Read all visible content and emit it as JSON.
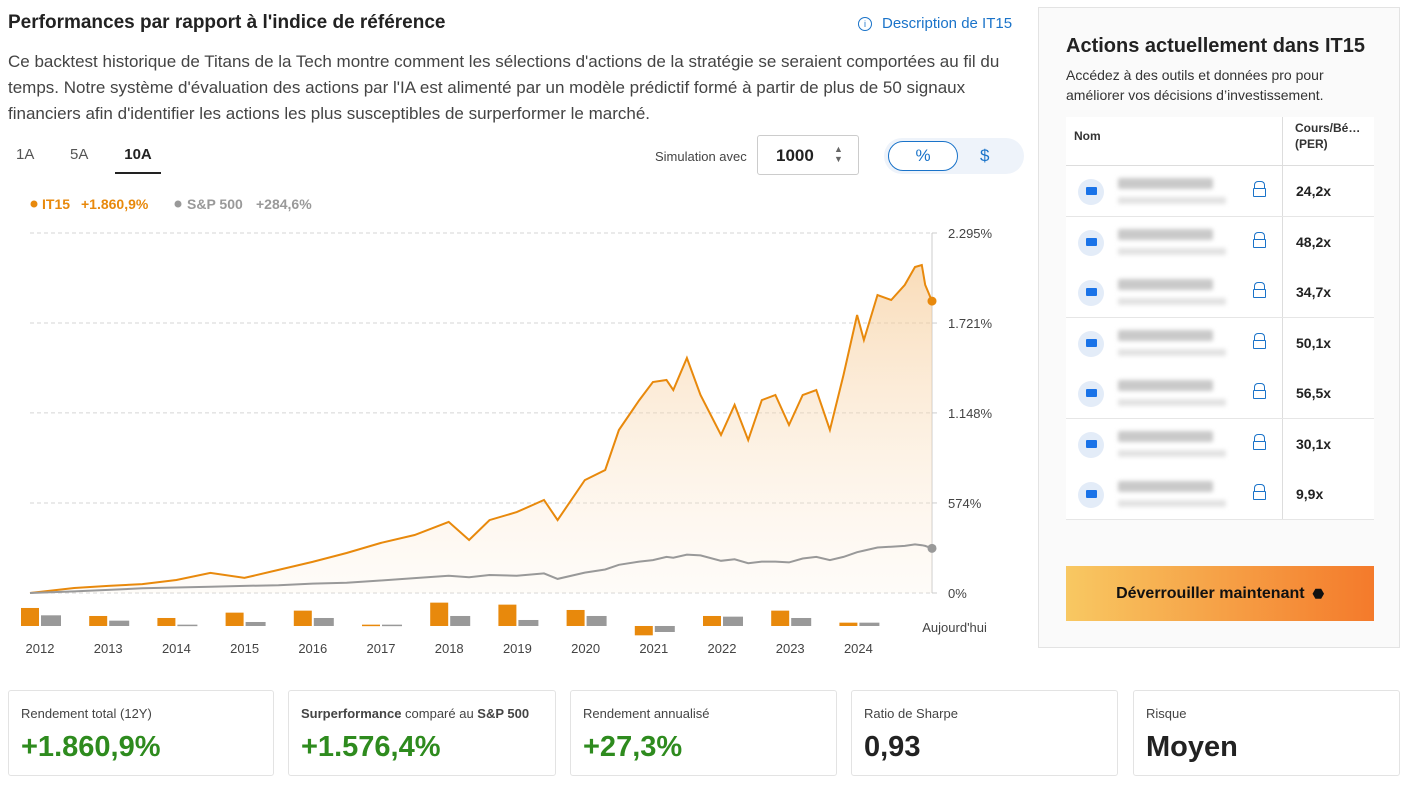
{
  "header": {
    "title": "Performances par rapport à l'indice de référence",
    "link": "Description de IT15",
    "description": "Ce backtest historique de Titans de la Tech montre comment les sélections d'actions de la stratégie se seraient comportées au fil du temps. Notre système d'évaluation des actions par l'IA est alimenté par un modèle prédictif formé à partir de plus de 50 signaux financiers afin d'identifier les actions les plus susceptibles de surperformer le marché."
  },
  "tabs": [
    "1A",
    "5A",
    "10A"
  ],
  "simulation": {
    "label": "Simulation avec",
    "amount": "1000",
    "modes": [
      "%",
      "$"
    ]
  },
  "chart_data": [
    {
      "type": "line",
      "legend_labels": [
        "+1.860,9%",
        "+284,6%"
      ],
      "x": [
        2011.85,
        2012.5,
        2013,
        2013.5,
        2014,
        2014.5,
        2015,
        2015.5,
        2016,
        2016.5,
        2017,
        2017.5,
        2018,
        2018.3,
        2018.6,
        2019,
        2019.4,
        2019.6,
        2020,
        2020.3,
        2020.5,
        2020.8,
        2021,
        2021.2,
        2021.3,
        2021.5,
        2021.7,
        2022,
        2022.2,
        2022.4,
        2022.6,
        2022.8,
        2023,
        2023.2,
        2023.4,
        2023.6,
        2023.8,
        2024,
        2024.1,
        2024.3,
        2024.5,
        2024.7,
        2024.85,
        2024.95,
        2025,
        2025.1
      ],
      "series": [
        {
          "name": "IT15",
          "color": "#e8890c",
          "values": [
            0,
            32,
            45,
            57,
            83,
            128,
            96,
            147,
            198,
            255,
            319,
            370,
            453,
            338,
            465,
            516,
            593,
            465,
            720,
            784,
            1039,
            1230,
            1345,
            1358,
            1294,
            1498,
            1262,
            1007,
            1199,
            975,
            1230,
            1262,
            1071,
            1262,
            1294,
            1039,
            1390,
            1772,
            1613,
            1900,
            1868,
            1964,
            2078,
            2091,
            1964,
            1860.9
          ]
        },
        {
          "name": "S&P 500",
          "color": "#999999",
          "values": [
            0,
            10,
            20,
            30,
            35,
            40,
            45,
            50,
            60,
            65,
            80,
            95,
            110,
            100,
            115,
            110,
            125,
            90,
            130,
            150,
            180,
            200,
            210,
            230,
            225,
            245,
            240,
            205,
            215,
            190,
            200,
            200,
            195,
            220,
            230,
            210,
            230,
            260,
            270,
            290,
            295,
            300,
            310,
            305,
            300,
            284.6
          ]
        }
      ],
      "xlim": [
        2011.85,
        2025.1
      ],
      "ylim": [
        0,
        2295
      ],
      "yticks": [
        {
          "value": 0,
          "label": "0%"
        },
        {
          "value": 574,
          "label": "574%"
        },
        {
          "value": 1148,
          "label": "1.148%"
        },
        {
          "value": 1721,
          "label": "1.721%"
        },
        {
          "value": 2295,
          "label": "2.295%"
        }
      ],
      "grid": true
    },
    {
      "type": "bar",
      "categories": [
        "2012",
        "2013",
        "2014",
        "2015",
        "2016",
        "2017",
        "2018",
        "2019",
        "2020",
        "2021",
        "2022",
        "2023",
        "2024",
        "Aujourd'hui"
      ],
      "series": [
        {
          "name": "IT15",
          "color": "#e8890c",
          "values": [
            27,
            15,
            12,
            20,
            23,
            2,
            35,
            32,
            24,
            -14,
            15,
            23,
            5,
            null
          ]
        },
        {
          "name": "S&P 500",
          "color": "#999999",
          "values": [
            16,
            8,
            2,
            6,
            12,
            2,
            15,
            9,
            15,
            -9,
            14,
            12,
            5,
            null
          ]
        }
      ],
      "ylim": [
        -15,
        40
      ]
    }
  ],
  "stats": [
    {
      "label": "Rendement total (12Y)",
      "value": "+1.860,9%"
    },
    {
      "label_parts": [
        "Surperformance",
        " comparé au ",
        "S&P 500"
      ],
      "value": "+1.576,4%"
    },
    {
      "label": "Rendement annualisé",
      "value": "+27,3%"
    },
    {
      "label": "Ratio de Sharpe",
      "value": "0,93"
    },
    {
      "label": "Risque",
      "value": "Moyen"
    }
  ],
  "sidebar": {
    "title": "Actions actuellement dans IT15",
    "subtitle": "Accédez à des outils et données pro pour améliorer vos décisions d’investissement.",
    "columns": [
      "Nom",
      "Cours/Bé…",
      "(PER)"
    ],
    "values": [
      "24,2x",
      "48,2x",
      "34,7x",
      "50,1x",
      "56,5x",
      "30,1x",
      "9,9x"
    ],
    "button": "Déverrouiller maintenant"
  }
}
